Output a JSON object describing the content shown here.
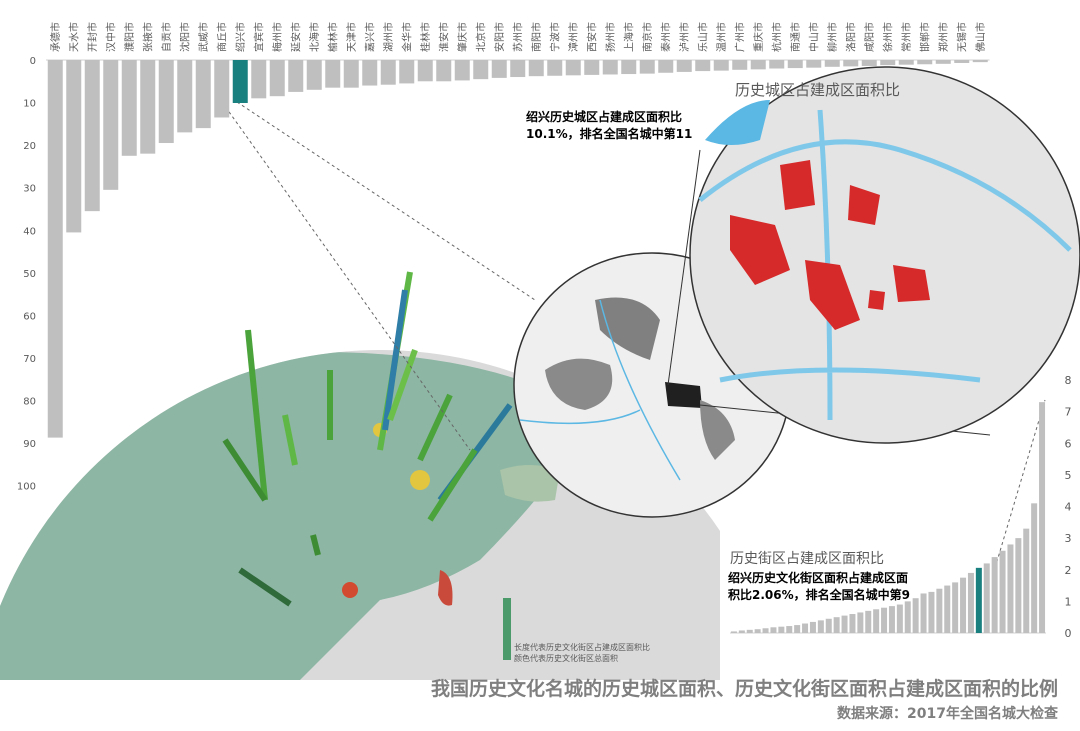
{
  "chart_data": [
    {
      "type": "bar",
      "orientation": "down",
      "title": "历史城区占建成区面积比",
      "annotation": "绍兴历史城区占建成区面积比",
      "annotation2": "10.1%，排名全国名城中第11",
      "categories": [
        "承德市",
        "天水市",
        "开封市",
        "汉中市",
        "濮阳市",
        "张掖市",
        "自贡市",
        "沈阳市",
        "武威市",
        "商丘市",
        "绍兴市",
        "宜宾市",
        "梅州市",
        "延安市",
        "北海市",
        "榆林市",
        "天津市",
        "嘉兴市",
        "湖州市",
        "金华市",
        "桂林市",
        "淮安市",
        "肇庆市",
        "北京市",
        "安阳市",
        "苏州市",
        "南阳市",
        "宁波市",
        "漳州市",
        "西安市",
        "扬州市",
        "上海市",
        "南京市",
        "泰州市",
        "泸州市",
        "乐山市",
        "温州市",
        "广州市",
        "重庆市",
        "杭州市",
        "南通市",
        "中山市",
        "柳州市",
        "洛阳市",
        "咸阳市",
        "徐州市",
        "常州市",
        "邯郸市",
        "郑州市",
        "无锡市",
        "佛山市"
      ],
      "values": [
        88.7,
        40.5,
        35.5,
        30.5,
        22.5,
        22,
        19.5,
        17,
        16,
        13.5,
        10.1,
        9,
        8.5,
        7.5,
        7,
        6.5,
        6.5,
        6,
        5.8,
        5.5,
        5,
        5,
        4.8,
        4.5,
        4.2,
        4,
        3.8,
        3.7,
        3.6,
        3.5,
        3.4,
        3.3,
        3.2,
        3,
        2.8,
        2.6,
        2.5,
        2.3,
        2.2,
        2,
        1.9,
        1.8,
        1.6,
        1.5,
        1.4,
        1.2,
        1.1,
        1,
        0.9,
        0.7,
        0.5
      ],
      "color": "#bfbfbf",
      "highlight_color": "#1a7f7f",
      "highlight_index": 10,
      "ylim": [
        0,
        105
      ],
      "yticks": [
        0,
        10,
        20,
        30,
        40,
        50,
        60,
        70,
        80,
        90,
        100
      ]
    },
    {
      "type": "bar",
      "title": "历史街区占建成区面积比",
      "annotation": "绍兴历史文化街区面积占建成区面",
      "annotation2": "积比2.06%，排名全国名城中第9",
      "categories": [
        null,
        null,
        null,
        null,
        null,
        null,
        null,
        null,
        null,
        null,
        null,
        null,
        null,
        null,
        null,
        null,
        null,
        null,
        null,
        null,
        null,
        null,
        null,
        null,
        null,
        null,
        null,
        null,
        null,
        null,
        null,
        null,
        null,
        null,
        null,
        null,
        null,
        null,
        null,
        null
      ],
      "values": [
        0.05,
        0.08,
        0.1,
        0.12,
        0.15,
        0.18,
        0.2,
        0.22,
        0.25,
        0.3,
        0.35,
        0.4,
        0.45,
        0.5,
        0.55,
        0.6,
        0.65,
        0.7,
        0.75,
        0.8,
        0.85,
        0.9,
        1.0,
        1.1,
        1.25,
        1.3,
        1.4,
        1.5,
        1.6,
        1.75,
        1.9,
        2.06,
        2.2,
        2.4,
        2.6,
        2.8,
        3.0,
        3.3,
        4.1,
        7.3
      ],
      "color": "#bfbfbf",
      "highlight_color": "#1a7f7f",
      "highlight_index": 31,
      "ylim": [
        0,
        8
      ],
      "yticks": [
        0,
        1,
        2,
        3,
        4,
        5,
        6,
        7,
        8
      ]
    }
  ],
  "legend": [
    "长度代表历史文化街区占建成区面积比",
    "颜色代表历史文化街区总面积"
  ],
  "footer": {
    "title": "我国历史文化名城的历史城区面积、历史文化街区面积占建成区面积的比例",
    "source": "数据来源：2017年全国名城大检查"
  }
}
